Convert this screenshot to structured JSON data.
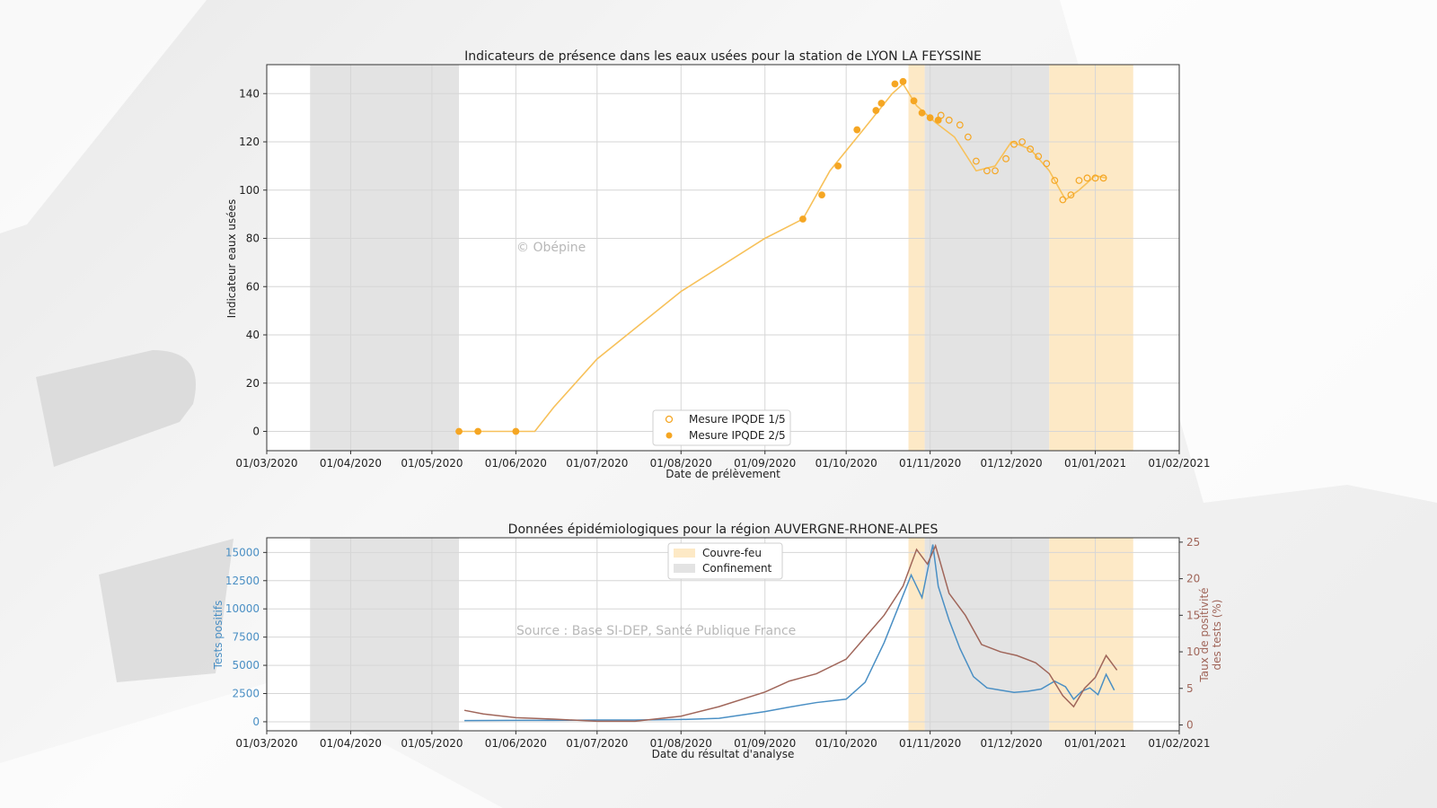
{
  "colors": {
    "measure_orange": "#f5a623",
    "measure_line": "#f7c15a",
    "curfew_fill": "#fde9c6",
    "lockdown_fill": "#e3e3e3",
    "tests_blue": "#4a8fc4",
    "rate_brown": "#a0665a",
    "grid": "#d6d6d6",
    "axis_blue_text": "#4a8fc4",
    "axis_brown_text": "#a0665a"
  },
  "chart_data": [
    {
      "type": "line",
      "title": "Indicateurs de présence dans les eaux usées pour la station de LYON LA FEYSSINE",
      "xlabel": "Date de prélèvement",
      "ylabel": "Indicateur eaux usées",
      "watermark": "© Obépine",
      "x_ticks": [
        "01/03/2020",
        "01/04/2020",
        "01/05/2020",
        "01/06/2020",
        "01/07/2020",
        "01/08/2020",
        "01/09/2020",
        "01/10/2020",
        "01/11/2020",
        "01/12/2020",
        "01/01/2021",
        "01/02/2021"
      ],
      "xlim": [
        "2020-03-01",
        "2021-02-01"
      ],
      "ylim": [
        -8,
        152
      ],
      "y_ticks": [
        0,
        20,
        40,
        60,
        80,
        100,
        120,
        140
      ],
      "grid": true,
      "legend_position": "bottom-center",
      "shaded_periods": [
        {
          "kind": "lockdown",
          "start": "2020-03-17",
          "end": "2020-05-11"
        },
        {
          "kind": "curfew",
          "start": "2020-10-24",
          "end": "2020-10-30"
        },
        {
          "kind": "lockdown",
          "start": "2020-10-30",
          "end": "2020-12-15"
        },
        {
          "kind": "curfew",
          "start": "2020-12-15",
          "end": "2021-01-15"
        }
      ],
      "smoothed_line": {
        "x": [
          "2020-05-11",
          "2020-06-08",
          "2020-06-15",
          "2020-07-01",
          "2020-08-01",
          "2020-09-01",
          "2020-09-15",
          "2020-09-25",
          "2020-10-08",
          "2020-10-18",
          "2020-10-22",
          "2020-10-27",
          "2020-11-03",
          "2020-11-10",
          "2020-11-18",
          "2020-11-25",
          "2020-12-01",
          "2020-12-08",
          "2020-12-15",
          "2020-12-21",
          "2020-12-26",
          "2021-01-01",
          "2021-01-05"
        ],
        "y": [
          0,
          0,
          10,
          30,
          58,
          80,
          88,
          108,
          126,
          140,
          144,
          135,
          128,
          122,
          108,
          110,
          120,
          117,
          108,
          96,
          100,
          106,
          105
        ]
      },
      "series": [
        {
          "name": "Mesure IPQDE 1/5",
          "marker": "hollow",
          "x": [
            "2020-11-05",
            "2020-11-08",
            "2020-11-12",
            "2020-11-15",
            "2020-11-18",
            "2020-11-22",
            "2020-11-25",
            "2020-11-29",
            "2020-12-02",
            "2020-12-05",
            "2020-12-08",
            "2020-12-11",
            "2020-12-14",
            "2020-12-17",
            "2020-12-20",
            "2020-12-23",
            "2020-12-26",
            "2020-12-29",
            "2021-01-01",
            "2021-01-04"
          ],
          "y": [
            131,
            129,
            127,
            122,
            112,
            108,
            108,
            113,
            119,
            120,
            117,
            114,
            111,
            104,
            96,
            98,
            104,
            105,
            105,
            105
          ]
        },
        {
          "name": "Mesure IPQDE 2/5",
          "marker": "filled",
          "x": [
            "2020-05-11",
            "2020-05-18",
            "2020-06-01",
            "2020-09-15",
            "2020-09-22",
            "2020-09-28",
            "2020-10-05",
            "2020-10-12",
            "2020-10-14",
            "2020-10-19",
            "2020-10-22",
            "2020-10-26",
            "2020-10-29",
            "2020-11-01",
            "2020-11-04"
          ],
          "y": [
            0,
            0,
            0,
            88,
            98,
            110,
            125,
            133,
            136,
            144,
            145,
            137,
            132,
            130,
            129
          ]
        }
      ]
    },
    {
      "type": "line",
      "title": "Données épidémiologiques pour la région AUVERGNE-RHONE-ALPES",
      "xlabel": "Date du résultat d'analyse",
      "ylabel_left": "Tests positifs",
      "ylabel_right": "Taux de positivité\ndes tests (%)",
      "watermark": "Source : Base SI-DEP, Santé Publique France",
      "x_ticks": [
        "01/03/2020",
        "01/04/2020",
        "01/05/2020",
        "01/06/2020",
        "01/07/2020",
        "01/08/2020",
        "01/09/2020",
        "01/10/2020",
        "01/11/2020",
        "01/12/2020",
        "01/01/2021",
        "01/02/2021"
      ],
      "xlim": [
        "2020-03-01",
        "2021-02-01"
      ],
      "ylim_left": [
        -800,
        16300
      ],
      "y_ticks_left": [
        0,
        2500,
        5000,
        7500,
        10000,
        12500,
        15000
      ],
      "ylim_right": [
        -0.8,
        25.6
      ],
      "y_ticks_right": [
        0,
        5,
        10,
        15,
        20,
        25
      ],
      "grid": true,
      "legend_position": "top-center",
      "legend": [
        "Couvre-feu",
        "Confinement"
      ],
      "shaded_periods": [
        {
          "kind": "lockdown",
          "start": "2020-03-17",
          "end": "2020-05-11"
        },
        {
          "kind": "curfew",
          "start": "2020-10-24",
          "end": "2020-10-30"
        },
        {
          "kind": "lockdown",
          "start": "2020-10-30",
          "end": "2020-12-15"
        },
        {
          "kind": "curfew",
          "start": "2020-12-15",
          "end": "2021-01-15"
        }
      ],
      "series": [
        {
          "name": "Tests positifs",
          "axis": "left",
          "x": [
            "2020-05-13",
            "2020-06-01",
            "2020-06-15",
            "2020-07-01",
            "2020-07-15",
            "2020-08-01",
            "2020-08-15",
            "2020-09-01",
            "2020-09-10",
            "2020-09-20",
            "2020-10-01",
            "2020-10-08",
            "2020-10-15",
            "2020-10-20",
            "2020-10-25",
            "2020-10-29",
            "2020-11-02",
            "2020-11-04",
            "2020-11-08",
            "2020-11-12",
            "2020-11-17",
            "2020-11-22",
            "2020-11-27",
            "2020-12-02",
            "2020-12-07",
            "2020-12-12",
            "2020-12-17",
            "2020-12-21",
            "2020-12-24",
            "2020-12-27",
            "2020-12-30",
            "2021-01-02",
            "2021-01-05",
            "2021-01-08"
          ],
          "y": [
            100,
            120,
            120,
            150,
            150,
            200,
            300,
            900,
            1300,
            1700,
            2000,
            3500,
            7000,
            10000,
            13000,
            11000,
            15700,
            12000,
            9000,
            6500,
            4000,
            3000,
            2800,
            2600,
            2700,
            2900,
            3600,
            3100,
            2000,
            2700,
            3000,
            2400,
            4200,
            2800
          ]
        },
        {
          "name": "Taux de positivité des tests (%)",
          "axis": "right",
          "x": [
            "2020-05-13",
            "2020-05-20",
            "2020-06-01",
            "2020-06-15",
            "2020-07-01",
            "2020-07-15",
            "2020-08-01",
            "2020-08-15",
            "2020-09-01",
            "2020-09-10",
            "2020-09-20",
            "2020-10-01",
            "2020-10-08",
            "2020-10-15",
            "2020-10-22",
            "2020-10-27",
            "2020-10-31",
            "2020-11-03",
            "2020-11-08",
            "2020-11-14",
            "2020-11-20",
            "2020-11-27",
            "2020-12-03",
            "2020-12-10",
            "2020-12-15",
            "2020-12-20",
            "2020-12-24",
            "2020-12-28",
            "2021-01-01",
            "2021-01-05",
            "2021-01-09"
          ],
          "y": [
            2,
            1.5,
            1,
            0.8,
            0.5,
            0.5,
            1.2,
            2.5,
            4.5,
            6,
            7,
            9,
            12,
            15,
            19,
            24,
            22,
            24.5,
            18,
            15,
            11,
            10,
            9.5,
            8.5,
            7,
            4,
            2.5,
            5,
            6.5,
            9.5,
            7.5
          ]
        }
      ]
    }
  ]
}
